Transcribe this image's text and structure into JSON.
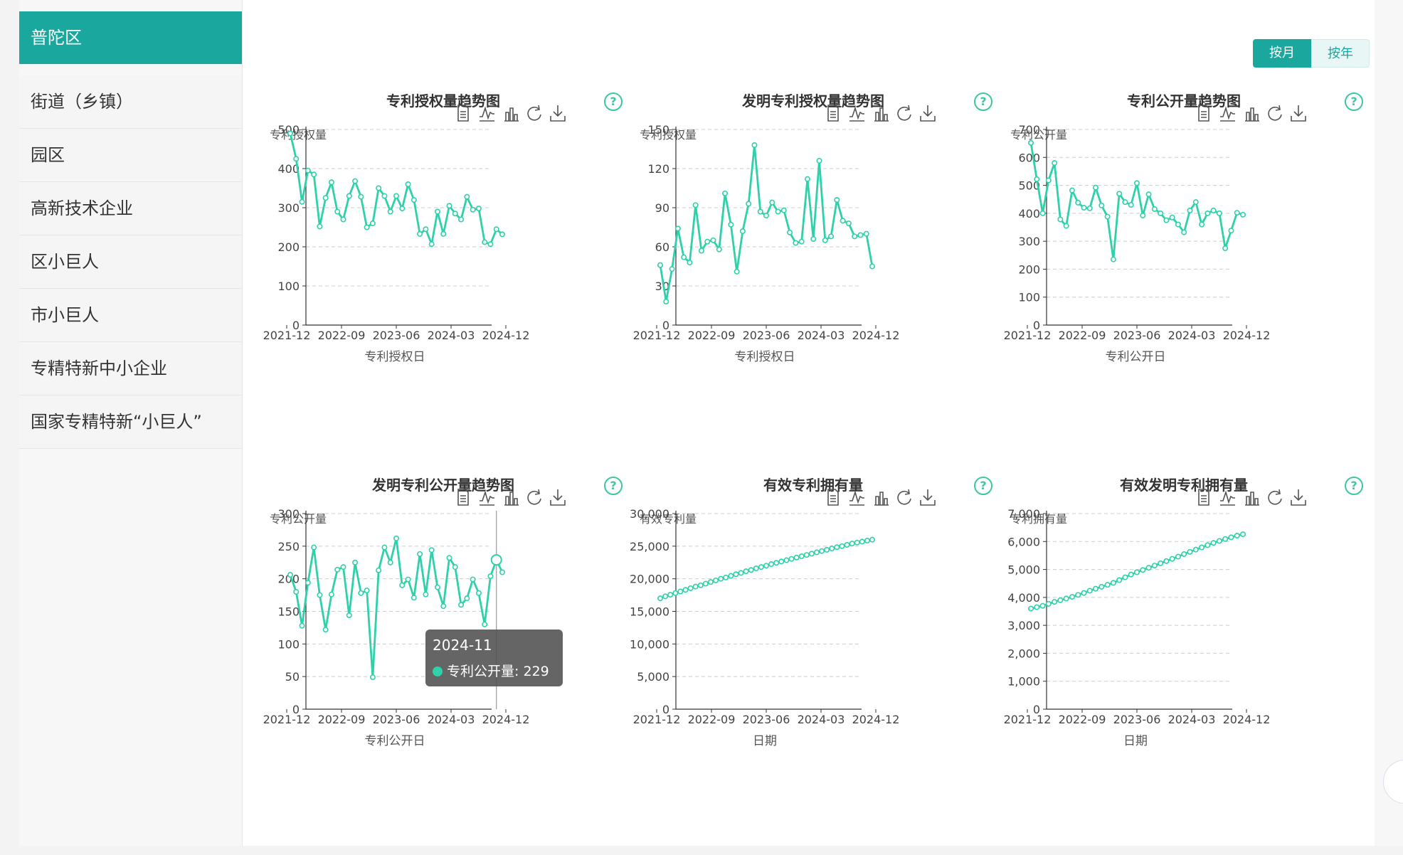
{
  "sidebar": {
    "active": "普陀区",
    "items": [
      "街道（乡镇）",
      "园区",
      "高新技术企业",
      "区小巨人",
      "市小巨人",
      "专精特新中小企业",
      "国家专精特新“小巨人”"
    ]
  },
  "toggle": {
    "month": "按月",
    "year": "按年"
  },
  "help_icon": "question-circle-icon",
  "toolbar_icons": [
    "data-view-icon",
    "line-chart-icon",
    "bar-chart-icon",
    "restore-icon",
    "download-icon"
  ],
  "colors": {
    "accent": "#1aa89e",
    "line": "#2ed1a9",
    "help": "#3cc7a1"
  },
  "tooltip": {
    "date": "2024-11",
    "label": "专利公开量: 229"
  },
  "chart_data": [
    {
      "type": "line",
      "title": "专利授权量趋势图",
      "ylabel": "专利授权量",
      "xlabel": "专利授权日",
      "ylim": [
        0,
        500
      ],
      "yticks": [
        "0",
        "100",
        "200",
        "300",
        "400",
        "500"
      ],
      "xticks": [
        "2021-12",
        "2022-09",
        "2023-06",
        "2024-03",
        "2024-12"
      ],
      "x_start": "2021-12",
      "values": [
        490,
        425,
        315,
        395,
        385,
        252,
        325,
        365,
        290,
        270,
        330,
        368,
        328,
        250,
        260,
        350,
        330,
        290,
        330,
        298,
        360,
        320,
        233,
        245,
        207,
        290,
        233,
        305,
        285,
        270,
        328,
        295,
        298,
        212,
        207,
        245,
        232
      ]
    },
    {
      "type": "line",
      "title": "发明专利授权量趋势图",
      "ylabel": "专利授权量",
      "xlabel": "专利授权日",
      "ylim": [
        0,
        150
      ],
      "yticks": [
        "0",
        "30",
        "60",
        "90",
        "120",
        "150"
      ],
      "xticks": [
        "2021-12",
        "2022-09",
        "2023-06",
        "2024-03",
        "2024-12"
      ],
      "x_start": "2021-12",
      "values": [
        46,
        18,
        43,
        74,
        52,
        48,
        92,
        57,
        64,
        65,
        58,
        101,
        77,
        41,
        72,
        93,
        138,
        87,
        84,
        94,
        87,
        88,
        71,
        63,
        64,
        112,
        66,
        126,
        65,
        68,
        96,
        80,
        78,
        68,
        69,
        70,
        45
      ]
    },
    {
      "type": "line",
      "title": "专利公开量趋势图",
      "ylabel": "专利公开量",
      "xlabel": "专利公开日",
      "ylim": [
        0,
        700
      ],
      "yticks": [
        "0",
        "100",
        "200",
        "300",
        "400",
        "500",
        "600",
        "700"
      ],
      "xticks": [
        "2021-12",
        "2022-09",
        "2023-06",
        "2024-03",
        "2024-12"
      ],
      "x_start": "2021-12",
      "values": [
        652,
        522,
        400,
        518,
        580,
        378,
        355,
        482,
        438,
        420,
        418,
        492,
        428,
        388,
        235,
        470,
        440,
        430,
        508,
        392,
        468,
        415,
        400,
        375,
        385,
        360,
        332,
        410,
        440,
        360,
        400,
        410,
        400,
        275,
        338,
        402,
        395
      ]
    },
    {
      "type": "line",
      "title": "发明专利公开量趋势图",
      "ylabel": "专利公开量",
      "xlabel": "专利公开日",
      "ylim": [
        0,
        300
      ],
      "yticks": [
        "0",
        "50",
        "100",
        "150",
        "200",
        "250",
        "300"
      ],
      "xticks": [
        "2021-12",
        "2022-09",
        "2023-06",
        "2024-03",
        "2024-12"
      ],
      "x_start": "2021-12",
      "values": [
        206,
        180,
        128,
        194,
        248,
        175,
        122,
        176,
        214,
        218,
        144,
        225,
        178,
        182,
        49,
        213,
        248,
        225,
        262,
        190,
        199,
        171,
        238,
        176,
        244,
        187,
        158,
        232,
        218,
        160,
        170,
        199,
        178,
        130,
        204,
        229,
        210
      ]
    },
    {
      "type": "line",
      "title": "有效专利拥有量",
      "ylabel": "有效专利量",
      "xlabel": "日期",
      "ylim": [
        0,
        30000
      ],
      "yticks": [
        "0",
        "5,000",
        "10,000",
        "15,000",
        "20,000",
        "25,000",
        "30,000"
      ],
      "xticks": [
        "2021-12",
        "2022-09",
        "2023-06",
        "2024-03",
        "2024-12"
      ],
      "x_start": "2021-12",
      "values": [
        17000,
        17300,
        17550,
        17800,
        18050,
        18300,
        18550,
        18800,
        19000,
        19250,
        19500,
        19750,
        20000,
        20200,
        20450,
        20700,
        20900,
        21150,
        21350,
        21600,
        21800,
        22000,
        22250,
        22450,
        22650,
        22850,
        23050,
        23250,
        23450,
        23650,
        23850,
        24050,
        24250,
        24450,
        24650,
        24850,
        25000,
        25200,
        25400,
        25550,
        25700,
        25850,
        26000
      ]
    },
    {
      "type": "line",
      "title": "有效发明专利拥有量",
      "ylabel": "专利拥有量",
      "xlabel": "日期",
      "ylim": [
        0,
        7000
      ],
      "yticks": [
        "0",
        "1,000",
        "2,000",
        "3,000",
        "4,000",
        "5,000",
        "6,000",
        "7,000"
      ],
      "xticks": [
        "2021-12",
        "2022-09",
        "2023-06",
        "2024-03",
        "2024-12"
      ],
      "x_start": "2021-12",
      "values": [
        3600,
        3650,
        3700,
        3770,
        3840,
        3900,
        3960,
        4020,
        4090,
        4160,
        4240,
        4310,
        4380,
        4450,
        4520,
        4620,
        4720,
        4820,
        4900,
        4980,
        5060,
        5140,
        5220,
        5300,
        5380,
        5460,
        5550,
        5630,
        5710,
        5790,
        5870,
        5950,
        6020,
        6090,
        6150,
        6210,
        6260
      ]
    }
  ]
}
